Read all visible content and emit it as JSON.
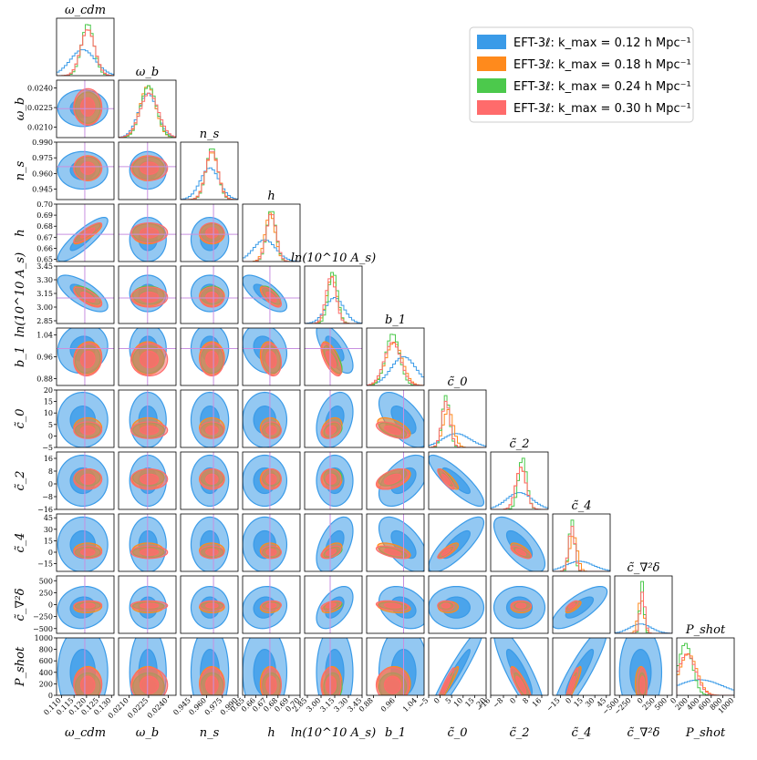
{
  "chart_data": {
    "type": "corner",
    "parameters": [
      {
        "label": "ω_cdm",
        "title": "ω_cdm",
        "range": [
          0.108,
          0.131
        ],
        "ticks": [
          0.11,
          0.115,
          0.12,
          0.125,
          0.13
        ],
        "tick_labels": [
          "0.110",
          "0.115",
          "0.120",
          "0.125",
          "0.130"
        ],
        "truth": 0.1193
      },
      {
        "label": "ω_b",
        "title": "ω_b",
        "range": [
          0.0202,
          0.0246
        ],
        "ticks": [
          0.021,
          0.0225,
          0.024
        ],
        "tick_labels": [
          "0.0210",
          "0.0225",
          "0.0240"
        ],
        "truth": 0.02242
      },
      {
        "label": "n_s",
        "title": "n_s",
        "range": [
          0.935,
          0.99
        ],
        "ticks": [
          0.945,
          0.96,
          0.975,
          0.99
        ],
        "tick_labels": [
          "0.945",
          "0.960",
          "0.975",
          "0.990"
        ],
        "truth": 0.9665
      },
      {
        "label": "h",
        "title": "h",
        "range": [
          0.648,
          0.7
        ],
        "ticks": [
          0.65,
          0.66,
          0.67,
          0.68,
          0.69,
          0.7
        ],
        "tick_labels": [
          "0.65",
          "0.66",
          "0.67",
          "0.68",
          "0.69",
          "0.70"
        ],
        "truth": 0.6727
      },
      {
        "label": "ln(10^10 A_s)",
        "title": "ln(10^10 A_s)",
        "range": [
          2.82,
          3.45
        ],
        "ticks": [
          2.85,
          3.0,
          3.15,
          3.3,
          3.45
        ],
        "tick_labels": [
          "2.85",
          "3.00",
          "3.15",
          "3.30",
          "3.45"
        ],
        "truth": 3.1
      },
      {
        "label": "b_1",
        "title": "b_1",
        "range": [
          0.855,
          1.065
        ],
        "ticks": [
          0.88,
          0.96,
          1.04
        ],
        "tick_labels": [
          "0.88",
          "0.96",
          "1.04"
        ],
        "y_ticks": [
          0.88,
          0.96,
          1.04
        ],
        "x_tick_labels": [
          "0.88",
          "0.96",
          "1.04"
        ],
        "truth": 0.99
      },
      {
        "label": "c̃_0",
        "title": "c̃_0",
        "range": [
          -5,
          20
        ],
        "ticks": [
          -5,
          0,
          5,
          10,
          15,
          20
        ],
        "tick_labels": [
          "−5",
          "0",
          "5",
          "10",
          "15",
          "20"
        ],
        "truth": null
      },
      {
        "label": "c̃_2",
        "title": "c̃_2",
        "range": [
          -16,
          20
        ],
        "ticks": [
          -16,
          -8,
          0,
          8,
          16
        ],
        "tick_labels": [
          "−16",
          "−8",
          "0",
          "8",
          "16"
        ],
        "truth": null
      },
      {
        "label": "c̃_4",
        "title": "c̃_4",
        "range": [
          -25,
          50
        ],
        "ticks": [
          -15,
          0,
          15,
          30,
          45
        ],
        "tick_labels": [
          "−15",
          "0",
          "15",
          "30",
          "45"
        ],
        "truth": null
      },
      {
        "label": "c̃_∇²δ",
        "title": "c̃_∇²δ",
        "range": [
          -600,
          600
        ],
        "ticks": [
          -500,
          -250,
          0,
          250,
          500
        ],
        "tick_labels": [
          "−500",
          "−250",
          "0",
          "250",
          "500"
        ],
        "truth": null
      },
      {
        "label": "P_shot",
        "title": "P_shot",
        "range": [
          0,
          1000
        ],
        "ticks": [
          0,
          200,
          400,
          600,
          800,
          1000
        ],
        "tick_labels": [
          "0",
          "200",
          "400",
          "600",
          "800",
          "1000"
        ],
        "truth": null
      }
    ],
    "series": [
      {
        "name": "EFT-3ℓ: k_max = 0.12 h Mpc⁻¹",
        "color": "#3a9be8",
        "k_max": 0.12,
        "means": [
          0.1185,
          0.02245,
          0.963,
          0.668,
          3.15,
          0.99,
          7,
          2,
          10,
          -60,
          400
        ],
        "sigmas": [
          0.005,
          0.0007,
          0.009,
          0.01,
          0.1,
          0.045,
          6,
          8,
          18,
          220,
          400
        ]
      },
      {
        "name": "EFT-3ℓ: k_max = 0.18 h Mpc⁻¹",
        "color": "#ff8a1c",
        "k_max": 0.18,
        "means": [
          0.1205,
          0.02245,
          0.965,
          0.673,
          3.12,
          0.955,
          3.5,
          3,
          2,
          -50,
          200
        ],
        "sigmas": [
          0.0028,
          0.0006,
          0.006,
          0.0045,
          0.055,
          0.03,
          2.2,
          3.2,
          5,
          60,
          150
        ]
      },
      {
        "name": "EFT-3ℓ: k_max = 0.24 h Mpc⁻¹",
        "color": "#4cc94c",
        "k_max": 0.24,
        "means": [
          0.1205,
          0.0225,
          0.965,
          0.674,
          3.13,
          0.95,
          2.5,
          4,
          0,
          -30,
          150
        ],
        "sigmas": [
          0.0025,
          0.0006,
          0.0055,
          0.0042,
          0.05,
          0.025,
          1.6,
          2.6,
          3.5,
          40,
          120
        ]
      },
      {
        "name": "EFT-3ℓ: k_max = 0.30 h Mpc⁻¹",
        "color": "#ff6b6b",
        "k_max": 0.3,
        "means": [
          0.1205,
          0.02255,
          0.965,
          0.674,
          3.11,
          0.95,
          2.5,
          3,
          0,
          -20,
          180
        ],
        "sigmas": [
          0.0028,
          0.0007,
          0.0058,
          0.0045,
          0.055,
          0.03,
          1.8,
          3.2,
          4,
          50,
          150
        ]
      }
    ],
    "correlations": [
      [
        0,
        3,
        0.85
      ],
      [
        0,
        4,
        -0.7
      ],
      [
        3,
        4,
        -0.7
      ],
      [
        0,
        5,
        0.1
      ],
      [
        4,
        5,
        -0.7
      ],
      [
        3,
        5,
        -0.2
      ],
      [
        5,
        6,
        -0.6
      ],
      [
        5,
        7,
        0.5
      ],
      [
        5,
        8,
        -0.6
      ],
      [
        5,
        9,
        -0.3
      ],
      [
        6,
        7,
        -0.85
      ],
      [
        6,
        8,
        0.8
      ],
      [
        6,
        10,
        0.95
      ],
      [
        7,
        8,
        -0.7
      ],
      [
        7,
        10,
        -0.85
      ],
      [
        8,
        9,
        0.75
      ],
      [
        8,
        10,
        0.9
      ],
      [
        4,
        6,
        0.3
      ],
      [
        4,
        8,
        0.5
      ],
      [
        4,
        9,
        0.5
      ],
      [
        0,
        9,
        0.1
      ],
      [
        3,
        9,
        0.1
      ]
    ],
    "legend_position": "top-right",
    "truth_line_color": "#c890e0"
  }
}
